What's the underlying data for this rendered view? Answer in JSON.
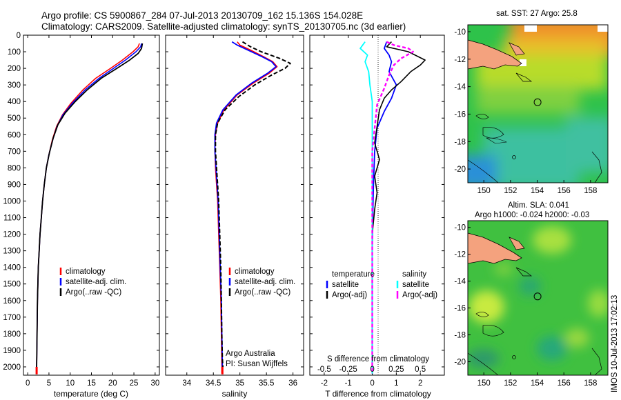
{
  "title": {
    "line1": "Argo profile: CS 5900867_284 07-Jul-2013 20130709_162 15.136S 154.028E",
    "line2": "Climatology: CARS2009. Satellite-adjusted climatology: synTS_20130705.nc (3d earlier)"
  },
  "colors": {
    "climatology": "#ff0000",
    "satellite": "#0000ff",
    "argo": "#000000",
    "sat_diff": "#00ffff",
    "argo_diff": "#ff00ff"
  },
  "depth_axis": {
    "min": 0,
    "max": 2050,
    "ticks": [
      0,
      100,
      200,
      300,
      400,
      500,
      600,
      700,
      800,
      900,
      1000,
      1100,
      1200,
      1300,
      1400,
      1500,
      1600,
      1700,
      1800,
      1900,
      2000
    ]
  },
  "chart_data": [
    {
      "type": "line",
      "xlabel": "temperature (deg C)",
      "xlim": [
        -1,
        31
      ],
      "xticks": [
        0,
        5,
        10,
        15,
        20,
        25,
        30
      ],
      "legend": [
        "climatology",
        "satellite-adj. clim.",
        "Argo(..raw -QC)"
      ],
      "series": [
        {
          "name": "climatology",
          "points": [
            [
              26.3,
              50
            ],
            [
              26,
              70
            ],
            [
              24.8,
              100
            ],
            [
              22.3,
              150
            ],
            [
              19.5,
              200
            ],
            [
              16,
              260
            ],
            [
              13,
              330
            ],
            [
              10.2,
              410
            ],
            [
              8.2,
              480
            ],
            [
              6.8,
              550
            ],
            [
              5.8,
              630
            ],
            [
              5,
              720
            ],
            [
              4.4,
              800
            ],
            [
              3.9,
              900
            ],
            [
              3.5,
              1000
            ],
            [
              3.2,
              1100
            ],
            [
              2.9,
              1200
            ],
            [
              2.7,
              1300
            ],
            [
              2.5,
              1400
            ],
            [
              2.4,
              1500
            ],
            [
              2.3,
              1600
            ],
            [
              2.25,
              1700
            ],
            [
              2.2,
              1800
            ],
            [
              2.15,
              1900
            ],
            [
              2.1,
              2000
            ],
            [
              2.1,
              2040
            ]
          ]
        },
        {
          "name": "satellite-adj. clim.",
          "points": [
            [
              26.8,
              50
            ],
            [
              26.6,
              70
            ],
            [
              25.5,
              100
            ],
            [
              23,
              150
            ],
            [
              20.2,
              200
            ],
            [
              16.8,
              260
            ],
            [
              13.5,
              330
            ],
            [
              10.5,
              410
            ],
            [
              8.3,
              480
            ],
            [
              6.9,
              550
            ],
            [
              5.9,
              630
            ],
            [
              5,
              720
            ],
            [
              4.4,
              800
            ],
            [
              3.9,
              900
            ],
            [
              3.5,
              1000
            ],
            [
              3.2,
              1100
            ],
            [
              2.9,
              1200
            ],
            [
              2.7,
              1300
            ],
            [
              2.5,
              1400
            ],
            [
              2.4,
              1500
            ],
            [
              2.3,
              1600
            ],
            [
              2.25,
              1700
            ],
            [
              2.2,
              1800
            ],
            [
              2.15,
              1900
            ],
            [
              2.1,
              2000
            ],
            [
              2.1,
              2040
            ]
          ]
        },
        {
          "name": "Argo(..raw -QC)",
          "points": [
            [
              27,
              50
            ],
            [
              26.8,
              80
            ],
            [
              26,
              110
            ],
            [
              24,
              150
            ],
            [
              21,
              200
            ],
            [
              17.3,
              260
            ],
            [
              14,
              330
            ],
            [
              11.2,
              400
            ],
            [
              8.8,
              470
            ],
            [
              7.1,
              540
            ],
            [
              6,
              620
            ],
            [
              5.1,
              710
            ],
            [
              4.4,
              800
            ],
            [
              3.9,
              900
            ],
            [
              3.5,
              1000
            ],
            [
              3.2,
              1100
            ],
            [
              2.9,
              1200
            ],
            [
              2.7,
              1300
            ],
            [
              2.5,
              1400
            ],
            [
              2.4,
              1500
            ],
            [
              2.3,
              1600
            ],
            [
              2.25,
              1700
            ],
            [
              2.2,
              1800
            ],
            [
              2.15,
              1900
            ],
            [
              2.1,
              2000
            ]
          ]
        }
      ]
    },
    {
      "type": "line",
      "xlabel": "salinity",
      "xlim": [
        33.6,
        36.2
      ],
      "xticks": [
        34,
        34.5,
        35,
        35.5,
        36
      ],
      "xticklabels": [
        "34",
        "34.5",
        "35",
        "35.5",
        "36"
      ],
      "legend": [
        "climatology",
        "satellite-adj. clim.",
        "Argo(..raw -QC)"
      ],
      "note": [
        "Argo Australia",
        "PI: Susan Wijffels"
      ],
      "series": [
        {
          "name": "climatology",
          "points": [
            [
              34.95,
              40
            ],
            [
              35,
              60
            ],
            [
              35.2,
              90
            ],
            [
              35.45,
              130
            ],
            [
              35.62,
              160
            ],
            [
              35.7,
              190
            ],
            [
              35.55,
              230
            ],
            [
              35.25,
              290
            ],
            [
              34.95,
              360
            ],
            [
              34.7,
              450
            ],
            [
              34.58,
              530
            ],
            [
              34.54,
              600
            ],
            [
              34.53,
              700
            ],
            [
              34.54,
              800
            ],
            [
              34.56,
              900
            ],
            [
              34.58,
              1000
            ],
            [
              34.6,
              1200
            ],
            [
              34.62,
              1400
            ],
            [
              34.64,
              1600
            ],
            [
              34.65,
              1800
            ],
            [
              34.66,
              2000
            ],
            [
              34.66,
              2040
            ]
          ]
        },
        {
          "name": "satellite-adj. clim.",
          "points": [
            [
              34.85,
              40
            ],
            [
              34.95,
              60
            ],
            [
              35.15,
              90
            ],
            [
              35.42,
              130
            ],
            [
              35.6,
              160
            ],
            [
              35.68,
              190
            ],
            [
              35.52,
              230
            ],
            [
              35.22,
              290
            ],
            [
              34.93,
              360
            ],
            [
              34.68,
              450
            ],
            [
              34.56,
              530
            ],
            [
              34.53,
              600
            ],
            [
              34.53,
              700
            ],
            [
              34.55,
              800
            ],
            [
              34.57,
              900
            ],
            [
              34.59,
              1000
            ],
            [
              34.61,
              1200
            ],
            [
              34.63,
              1400
            ],
            [
              34.65,
              1600
            ],
            [
              34.66,
              1800
            ],
            [
              34.67,
              2000
            ],
            [
              34.67,
              2040
            ]
          ]
        },
        {
          "name": "Argo(..raw -QC)",
          "points": [
            [
              35.05,
              40
            ],
            [
              35.2,
              70
            ],
            [
              35.4,
              100
            ],
            [
              35.75,
              140
            ],
            [
              35.95,
              170
            ],
            [
              35.85,
              200
            ],
            [
              35.6,
              240
            ],
            [
              35.28,
              300
            ],
            [
              34.98,
              370
            ],
            [
              34.72,
              450
            ],
            [
              34.58,
              530
            ],
            [
              34.54,
              600
            ],
            [
              34.54,
              700
            ],
            [
              34.56,
              800
            ],
            [
              34.58,
              900
            ],
            [
              34.6,
              1000
            ],
            [
              34.62,
              1200
            ],
            [
              34.64,
              1400
            ],
            [
              34.65,
              1600
            ],
            [
              34.66,
              1800
            ],
            [
              34.67,
              1950
            ],
            [
              34.68,
              2000
            ]
          ]
        }
      ]
    },
    {
      "type": "line",
      "xlabel": "T difference from climatology",
      "toplabel": "S difference from climatology",
      "xlim": [
        -2.6,
        3.0
      ],
      "xticks": [
        -2,
        -1,
        0,
        1,
        2
      ],
      "sxticks": [
        -0.5,
        -0.25,
        0,
        0.25,
        0.5
      ],
      "sxticklabels": [
        "-0.5",
        "-0.25",
        "0",
        "0.25",
        "0.5"
      ],
      "legend_temperature": {
        "heading": "temperature",
        "items": [
          "satellite",
          "Argo(-adj)"
        ]
      },
      "legend_salinity": {
        "heading": "salinity",
        "items": [
          "satellite",
          "Argo(-adj)"
        ]
      },
      "series": [
        {
          "name": "satellite (temperature)",
          "points": [
            [
              0.6,
              40
            ],
            [
              0.5,
              80
            ],
            [
              0.7,
              120
            ],
            [
              0.8,
              160
            ],
            [
              0.7,
              220
            ],
            [
              1,
              300
            ],
            [
              0.8,
              380
            ],
            [
              0.5,
              460
            ],
            [
              0.2,
              560
            ],
            [
              0.1,
              700
            ],
            [
              0.05,
              900
            ],
            [
              0.02,
              1100
            ],
            [
              0,
              1300
            ],
            [
              0,
              2040
            ]
          ]
        },
        {
          "name": "Argo(-adj) (temperature)",
          "points": [
            [
              0.8,
              40
            ],
            [
              0.6,
              70
            ],
            [
              1.5,
              100
            ],
            [
              2.2,
              150
            ],
            [
              2,
              180
            ],
            [
              1.6,
              220
            ],
            [
              1.2,
              280
            ],
            [
              0.8,
              330
            ],
            [
              0.5,
              380
            ],
            [
              0.3,
              450
            ],
            [
              0.2,
              550
            ],
            [
              0.1,
              650
            ],
            [
              0.3,
              750
            ],
            [
              0.1,
              850
            ],
            [
              0.2,
              950
            ],
            [
              0.1,
              1050
            ],
            [
              0,
              1200
            ],
            [
              0,
              2000
            ]
          ]
        },
        {
          "name": "satellite (salinity)",
          "points": [
            [
              -0.3,
              40
            ],
            [
              -0.5,
              80
            ],
            [
              -0.2,
              120
            ],
            [
              -0.3,
              160
            ],
            [
              -0.15,
              220
            ],
            [
              -0.1,
              300
            ],
            [
              0,
              400
            ],
            [
              0,
              2040
            ]
          ]
        },
        {
          "name": "Argo(-adj) (salinity)",
          "points": [
            [
              0.6,
              40
            ],
            [
              0.9,
              60
            ],
            [
              1.5,
              80
            ],
            [
              1.7,
              100
            ],
            [
              1.2,
              140
            ],
            [
              0.9,
              180
            ],
            [
              0.7,
              240
            ],
            [
              0.5,
              320
            ],
            [
              0.2,
              420
            ],
            [
              0.1,
              560
            ],
            [
              0,
              700
            ],
            [
              0,
              2040
            ]
          ]
        }
      ]
    },
    {
      "type": "heatmap",
      "title": "sat. SST: 27  Argo: 25.8",
      "xticks": [
        150,
        152,
        154,
        156,
        158
      ],
      "yticks": [
        -10,
        -12,
        -14,
        -16,
        -18,
        -20
      ],
      "xlim": [
        148.8,
        159.3
      ],
      "ylim": [
        -21,
        -9.5
      ],
      "marker": [
        154.028,
        -15.136
      ]
    },
    {
      "type": "heatmap",
      "title": "Altim. SLA: 0.041",
      "subtitle": "Argo h1000: -0.024  h2000: -0.03",
      "xticks": [
        150,
        152,
        154,
        156,
        158
      ],
      "yticks": [
        -10,
        -12,
        -14,
        -16,
        -18,
        -20
      ],
      "xlim": [
        148.8,
        159.3
      ],
      "ylim": [
        -21,
        -9.5
      ],
      "marker": [
        154.028,
        -15.136
      ]
    }
  ],
  "credit": "IMOS 10-Jul-2013 17:02:13"
}
